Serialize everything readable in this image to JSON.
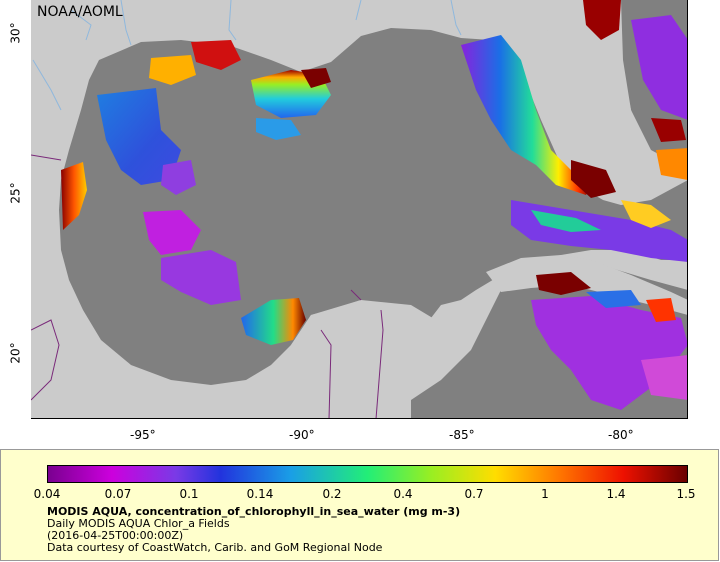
{
  "map": {
    "org_label": "NOAA/AOML",
    "lat_labels": [
      "30°",
      "25°",
      "20°"
    ],
    "lon_labels": [
      "-95°",
      "-90°",
      "-85°",
      "-80°"
    ],
    "colors": {
      "land": "#cbcbcb",
      "ocean_no_data": "#808080",
      "borders": "#7a2a7a",
      "rivers": "#8fb8dd"
    }
  },
  "legend": {
    "colorbar_ticks": [
      "0.04",
      "0.07",
      "0.1",
      "0.14",
      "0.2",
      "0.4",
      "0.7",
      "1",
      "1.4",
      "1.5"
    ],
    "title": "MODIS AQUA, concentration_of_chlorophyll_in_sea_water (mg m-3)",
    "subtitle": "Daily MODIS AQUA Chlor_a Fields",
    "timestamp": "(2016-04-25T00:00:00Z)",
    "credit": "Data courtesy of CoastWatch, Carib. and GoM Regional Node"
  }
}
